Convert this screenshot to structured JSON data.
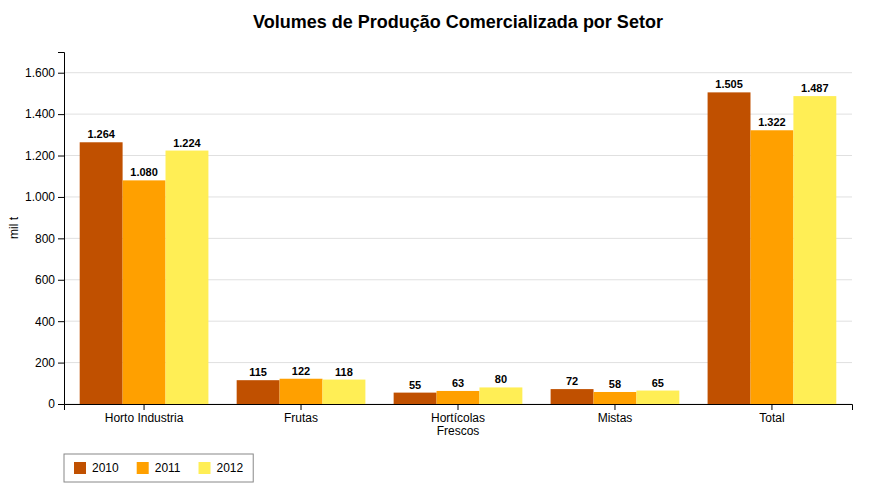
{
  "chart_data": {
    "type": "bar",
    "title": "Volumes de Produção Comercializada por Setor",
    "categories": [
      "Horto Industria",
      "Frutas",
      "Hortícolas\nFrescos",
      "Mistas",
      "Total"
    ],
    "ylabel": "mil t",
    "series": [
      {
        "name": "2010",
        "color": "#C05000",
        "values": [
          1264,
          115,
          55,
          72,
          1505
        ],
        "value_labels": [
          "1.264",
          "115",
          "55",
          "72",
          "1.505"
        ]
      },
      {
        "name": "2011",
        "color": "#FFA000",
        "values": [
          1080,
          122,
          63,
          58,
          1322
        ],
        "value_labels": [
          "1.080",
          "122",
          "63",
          "58",
          "1.322"
        ]
      },
      {
        "name": "2012",
        "color": "#FFEE55",
        "values": [
          1224,
          118,
          80,
          65,
          1487
        ],
        "value_labels": [
          "1.224",
          "118",
          "80",
          "65",
          "1.487"
        ]
      }
    ],
    "ylim": [
      0,
      1700
    ],
    "yticks": [
      0,
      200,
      400,
      600,
      800,
      {
        "value": 1000,
        "label": "1.000"
      },
      {
        "value": 1200,
        "label": "1.200"
      },
      {
        "value": 1400,
        "label": "1.400"
      },
      {
        "value": 1600,
        "label": "1.600"
      }
    ],
    "grid": true,
    "legend": "lower left",
    "data_labels": true
  }
}
